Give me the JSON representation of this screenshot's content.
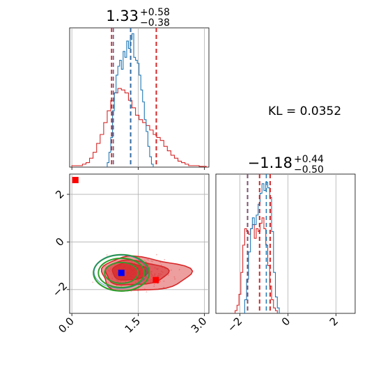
{
  "chart_data": {
    "type": "corner",
    "title": "",
    "parameters": [
      {
        "median": "1.33",
        "plus": "+0.58",
        "minus": "−0.38",
        "xlim": [
          -0.05,
          3.1
        ],
        "ticks": [
          0.0,
          1.5,
          3.0
        ],
        "tick_labels": [
          "0.0",
          "1.5",
          "3.0"
        ]
      },
      {
        "median": "−1.18",
        "plus": "+0.44",
        "minus": "−0.50",
        "xlim": [
          -3.0,
          2.8
        ],
        "ticks": [
          -2,
          0,
          2
        ],
        "tick_labels": [
          "−2",
          "0",
          "2"
        ]
      }
    ],
    "joint_ylim": [
      -3.0,
      2.85
    ],
    "joint_yticks": [
      2,
      0,
      -2
    ],
    "joint_ytick_labels": [
      "2",
      "0",
      "−2"
    ],
    "kl_label": "KL = 0.0352",
    "series": [
      {
        "name": "blue",
        "color": "#1f77b4",
        "hist1": {
          "x_start": 0.8,
          "bin_width": 0.04,
          "counts": [
            0.03,
            0.1,
            0.2,
            0.38,
            0.5,
            0.62,
            0.68,
            0.72,
            0.66,
            0.78,
            0.74,
            0.85,
            0.8,
            0.86,
            0.9,
            0.74,
            0.72,
            0.7,
            0.62,
            0.52,
            0.44,
            0.32,
            0.24,
            0.14,
            0.07,
            0.02
          ]
        },
        "hist2": {
          "x_start": -1.8,
          "bin_width": 0.08,
          "counts": [
            0.1,
            0.25,
            0.45,
            0.62,
            0.7,
            0.65,
            0.72,
            0.8,
            0.88,
            0.95,
            0.9,
            0.96,
            0.92,
            0.85,
            0.6,
            0.3,
            0.12,
            0.04
          ]
        },
        "quantile_lines_1": [
          0.94,
          1.33
        ],
        "quantile_lines_2": [
          -1.68,
          -0.9
        ]
      },
      {
        "name": "red",
        "color": "#d62728",
        "hist1": {
          "x_start": 0.0,
          "bin_width": 0.08,
          "counts": [
            0.01,
            0.01,
            0.01,
            0.02,
            0.03,
            0.06,
            0.1,
            0.16,
            0.22,
            0.3,
            0.38,
            0.45,
            0.5,
            0.53,
            0.52,
            0.5,
            0.45,
            0.4,
            0.35,
            0.32,
            0.3,
            0.28,
            0.25,
            0.22,
            0.2,
            0.18,
            0.14,
            0.11,
            0.08,
            0.06,
            0.04,
            0.03,
            0.02,
            0.01,
            0.01,
            0.01,
            0.005,
            0.005
          ]
        },
        "hist2": {
          "x_start": -2.2,
          "bin_width": 0.08,
          "counts": [
            0.02,
            0.06,
            0.14,
            0.3,
            0.5,
            0.62,
            0.6,
            0.58,
            0.62,
            0.65,
            0.55,
            0.62,
            0.6,
            0.66,
            0.7,
            0.62,
            0.5,
            0.35,
            0.2,
            0.1,
            0.04,
            0.02
          ]
        },
        "quantile_lines_1": [
          0.9,
          1.33,
          1.91
        ],
        "quantile_lines_2": [
          -1.68,
          -1.18,
          -0.74
        ]
      }
    ],
    "joint": {
      "red_fill_color": "#d62728",
      "green_color": "#2ca02c",
      "blue_marker": [
        1.12,
        -1.3
      ],
      "red_markers": [
        [
          0.08,
          2.6
        ],
        [
          1.9,
          -1.6
        ]
      ]
    }
  }
}
